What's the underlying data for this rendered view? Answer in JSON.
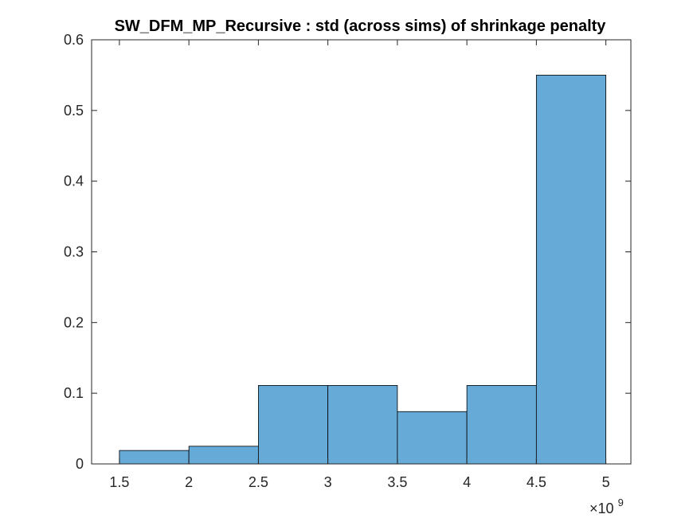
{
  "chart_data": {
    "type": "bar",
    "title": "SW_DFM_MP_Recursive : std (across sims) of shrinkage penalty",
    "xlabel": "",
    "ylabel": "",
    "bin_edges": [
      1.5,
      2.0,
      2.5,
      3.0,
      3.5,
      4.0,
      4.5,
      5.0
    ],
    "values": [
      0.019,
      0.025,
      0.111,
      0.111,
      0.074,
      0.111,
      0.55
    ],
    "xlim": [
      1.5,
      5.0
    ],
    "ylim": [
      0,
      0.6
    ],
    "xticks": [
      1.5,
      2,
      2.5,
      3,
      3.5,
      4,
      4.5,
      5
    ],
    "xtick_labels": [
      "1.5",
      "2",
      "2.5",
      "3",
      "3.5",
      "4",
      "4.5",
      "5"
    ],
    "yticks": [
      0,
      0.1,
      0.2,
      0.3,
      0.4,
      0.5,
      0.6
    ],
    "ytick_labels": [
      "0",
      "0.1",
      "0.2",
      "0.3",
      "0.4",
      "0.5",
      "0.6"
    ],
    "x_multiplier_base": "×10",
    "x_multiplier_exponent": "9",
    "bar_color": "#66AAD7",
    "bar_edge_color": "#000000",
    "grid": false,
    "legend": "none"
  }
}
